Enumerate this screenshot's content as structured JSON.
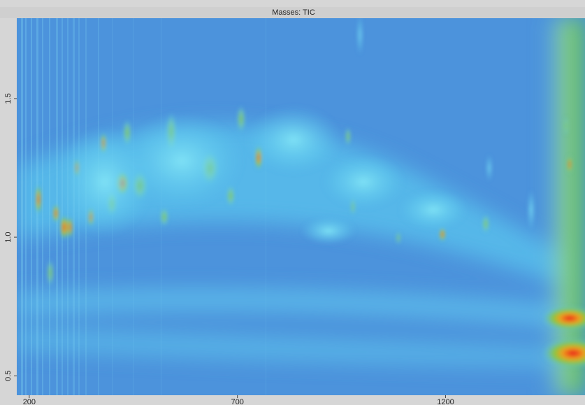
{
  "chart_data": {
    "type": "heatmap",
    "title": "Masses: TIC",
    "xlim": [
      170,
      1535
    ],
    "xticks": [
      200,
      700,
      1200
    ],
    "ylim": [
      0.43,
      1.79
    ],
    "yticks": [
      {
        "value": 0.5,
        "label": "0.5"
      },
      {
        "value": 1,
        "label": "1.0"
      },
      1.5
    ]
  }
}
